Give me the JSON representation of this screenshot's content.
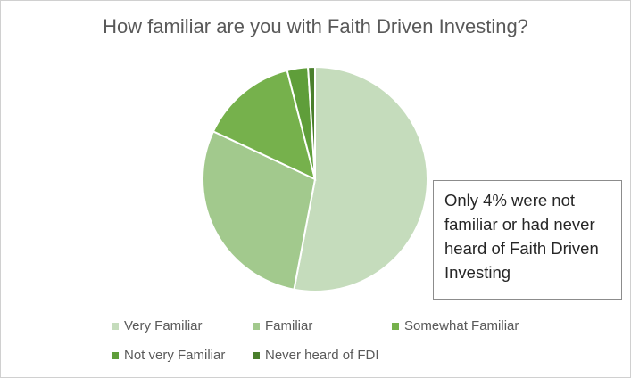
{
  "chart_data": {
    "type": "pie",
    "title": "How familiar are you with Faith Driven Investing?",
    "categories": [
      "Very Familiar",
      "Familiar",
      "Somewhat Familiar",
      "Not very Familiar",
      "Never heard of FDI"
    ],
    "values": [
      53,
      29,
      14,
      3,
      1
    ],
    "unit": "%",
    "colors": [
      "#c5dcbc",
      "#a2c98d",
      "#76b14c",
      "#5f9e3a",
      "#4a7f2c"
    ],
    "legend_position": "bottom",
    "annotation": "Only 4% were not familiar or had never heard of Faith Driven Investing"
  }
}
